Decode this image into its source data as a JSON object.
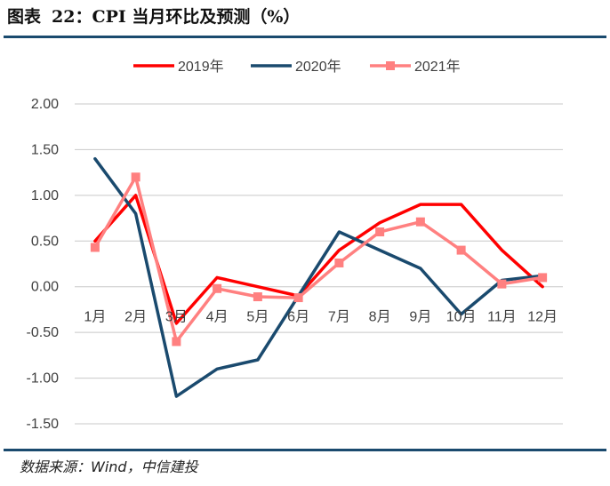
{
  "figure": {
    "label": "图表",
    "number": "22：",
    "title": "CPI 当月环比及预测（%）",
    "source": "数据来源：Wind，中信建投"
  },
  "chart_data": {
    "type": "line",
    "categories": [
      "1月",
      "2月",
      "3月",
      "4月",
      "5月",
      "6月",
      "7月",
      "8月",
      "9月",
      "10月",
      "11月",
      "12月"
    ],
    "ylim": [
      -1.5,
      2.0
    ],
    "yticks": [
      2.0,
      1.5,
      1.0,
      0.5,
      0.0,
      -0.5,
      -1.0,
      -1.5
    ],
    "ytick_labels": [
      "2.00",
      "1.50",
      "1.00",
      "0.50",
      "0.00",
      "-0.50",
      "-1.00",
      "-1.50"
    ],
    "grid": true,
    "legend_position": "top",
    "series": [
      {
        "name": "2019年",
        "color": "#ff0000",
        "marker": "none",
        "values": [
          0.5,
          1.0,
          -0.4,
          0.1,
          0.0,
          -0.1,
          0.4,
          0.7,
          0.9,
          0.9,
          0.4,
          0.0
        ]
      },
      {
        "name": "2020年",
        "color": "#1a4a6e",
        "marker": "none",
        "values": [
          1.4,
          0.8,
          -1.2,
          -0.9,
          -0.8,
          -0.1,
          0.6,
          0.4,
          0.2,
          -0.3,
          0.07,
          0.12
        ]
      },
      {
        "name": "2021年",
        "color": "#ff8080",
        "marker": "square",
        "values": [
          0.43,
          1.2,
          -0.6,
          -0.02,
          -0.11,
          -0.12,
          0.26,
          0.6,
          0.71,
          0.4,
          0.03,
          0.1
        ]
      }
    ]
  }
}
